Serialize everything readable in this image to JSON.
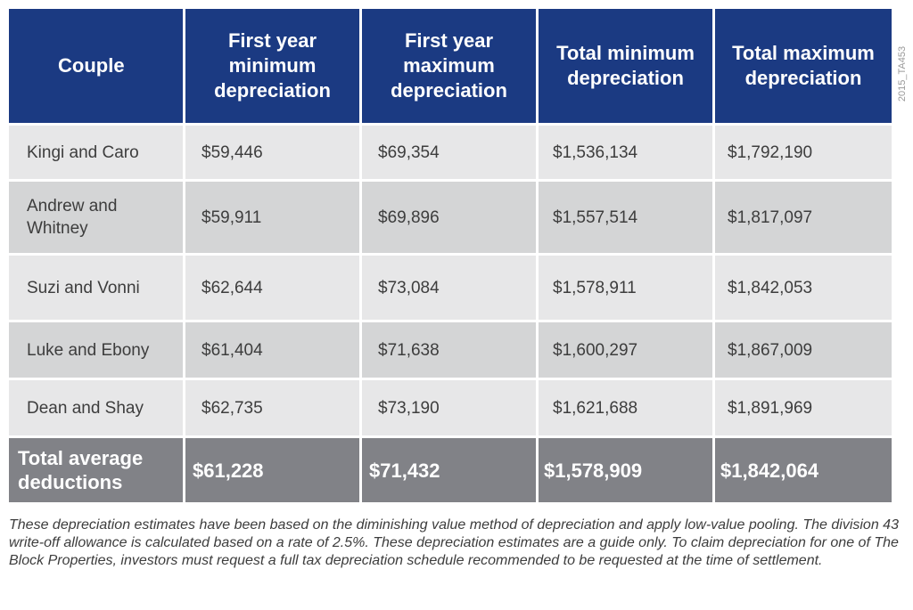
{
  "headers": [
    "Couple",
    "First year minimum depreciation",
    "First year maximum depreciation",
    "Total minimum depreciation",
    "Total maximum depreciation"
  ],
  "rows": [
    [
      "Kingi and Caro",
      "$59,446",
      "$69,354",
      "$1,536,134",
      "$1,792,190"
    ],
    [
      "Andrew and Whitney",
      "$59,911",
      "$69,896",
      "$1,557,514",
      "$1,817,097"
    ],
    [
      "Suzi and Vonni",
      "$62,644",
      "$73,084",
      "$1,578,911",
      "$1,842,053"
    ],
    [
      "Luke and Ebony",
      "$61,404",
      "$71,638",
      "$1,600,297",
      "$1,867,009"
    ],
    [
      "Dean and Shay",
      "$62,735",
      "$73,190",
      "$1,621,688",
      "$1,891,969"
    ]
  ],
  "total": [
    "Total average deductions",
    "$61,228",
    "$71,432",
    "$1,578,909",
    "$1,842,064"
  ],
  "note": "These depreciation estimates have been based on the diminishing value method of depreciation and apply low-value pooling. The division 43 write-off allowance is calculated based on a rate of 2.5%. These depreciation estimates are a guide only. To claim depreciation for one of The Block Properties, investors must request a full tax depreciation schedule recommended to be requested at the time of settlement.",
  "reference_code": "2015_TA453",
  "colors": {
    "header_bg": "#1b3a82",
    "row_light": "#e7e7e8",
    "row_dark": "#d4d5d6",
    "total_bg": "#818287"
  }
}
